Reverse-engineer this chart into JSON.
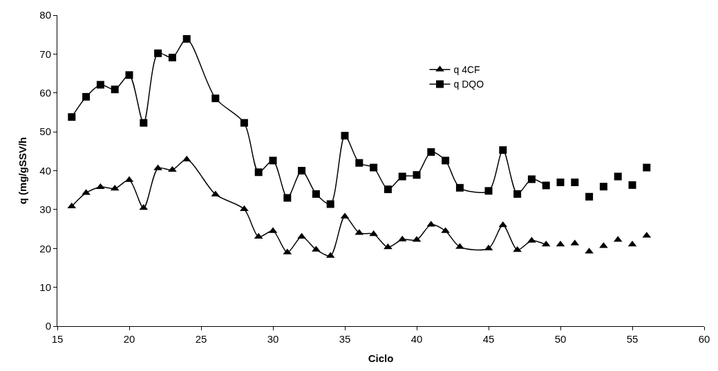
{
  "chart_data": {
    "type": "line",
    "xlabel": "Ciclo",
    "ylabel": "q (mg/gSSV/h",
    "xlim": [
      15,
      60
    ],
    "xticks": [
      15,
      20,
      25,
      30,
      35,
      40,
      45,
      50,
      55,
      60
    ],
    "ylim": [
      0,
      80
    ],
    "yticks": [
      0,
      10,
      20,
      30,
      40,
      50,
      60,
      70,
      80
    ],
    "legend": "top right",
    "line_style": "solid",
    "series": [
      {
        "name": "q 4CF",
        "color": "#000000",
        "marker": "triangle",
        "x": [
          16,
          17,
          18,
          19,
          20,
          21,
          22,
          23,
          24,
          26,
          28,
          29,
          30,
          31,
          32,
          33,
          34,
          35,
          36,
          37,
          38,
          39,
          40,
          41,
          42,
          43,
          45,
          46,
          47,
          48,
          49
        ],
        "values": [
          30.8,
          34.3,
          35.8,
          35.4,
          37.6,
          30.4,
          40.6,
          40.2,
          42.9,
          33.9,
          30.1,
          23,
          24.5,
          19,
          23,
          19.7,
          18.1,
          28.2,
          24,
          23.7,
          20.3,
          22.3,
          22.2,
          26.1,
          24.5,
          20.4,
          20,
          26,
          19.6,
          22,
          21
        ]
      },
      {
        "type": "scatter",
        "color": "#000000",
        "marker": "triangle",
        "x": [
          50,
          51,
          52,
          53,
          54,
          55,
          56
        ],
        "values": [
          21,
          21.3,
          19.2,
          20.6,
          22.2,
          21,
          23.3
        ]
      },
      {
        "name": "q DQO",
        "color": "#000000",
        "marker": "square",
        "x": [
          16,
          17,
          18,
          19,
          20,
          21,
          22,
          23,
          24,
          26,
          28,
          29,
          30,
          31,
          32,
          33,
          34,
          35,
          36,
          37,
          38,
          39,
          40,
          41,
          42,
          43,
          45,
          46,
          47,
          48,
          49
        ],
        "values": [
          53.8,
          59,
          62.1,
          60.9,
          64.6,
          52.3,
          70.2,
          69.1,
          73.9,
          58.6,
          52.3,
          39.6,
          42.6,
          33,
          40,
          34,
          31.4,
          49,
          42,
          40.8,
          35.2,
          38.5,
          38.9,
          44.8,
          42.6,
          35.6,
          34.8,
          45.3,
          34,
          37.8,
          36.2
        ]
      },
      {
        "type": "scatter",
        "color": "#000000",
        "marker": "square",
        "x": [
          50,
          51,
          52,
          53,
          54,
          55,
          56
        ],
        "values": [
          37,
          37,
          33.3,
          35.9,
          38.5,
          36.3,
          40.8
        ]
      }
    ]
  }
}
